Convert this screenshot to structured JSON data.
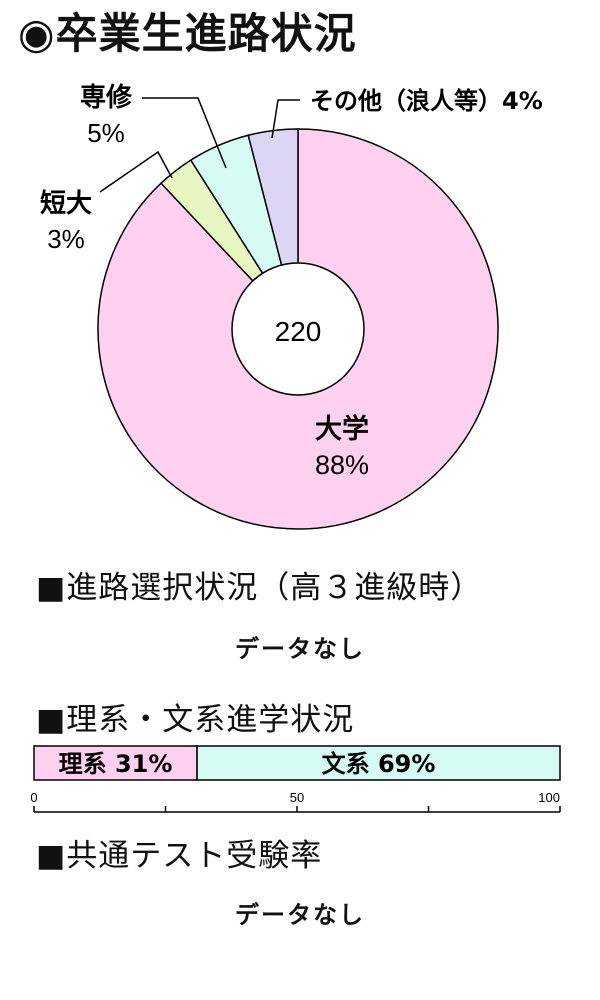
{
  "title": "◉卒業生進路状況",
  "colors": {
    "daigaku": "#ffd0f0",
    "tandai": "#e8f7c2",
    "senshu": "#d6fbf4",
    "sonota": "#dcd6f4",
    "rikei": "#ffd0f0",
    "bunkei": "#d6fbf4"
  },
  "chart_data": [
    {
      "type": "pie",
      "center_label": "220",
      "slices": [
        {
          "name": "大学",
          "value": 88,
          "label_name": "大学",
          "label_pct": "88%"
        },
        {
          "name": "短大",
          "value": 3,
          "label_name": "短大",
          "label_pct": "3%"
        },
        {
          "name": "専修",
          "value": 5,
          "label_name": "専修",
          "label_pct": "5%"
        },
        {
          "name": "その他（浪人等）",
          "value": 4,
          "label_name": "その他（浪人等）4%",
          "label_pct": ""
        }
      ]
    },
    {
      "type": "bar",
      "stacked": true,
      "orientation": "horizontal",
      "segments": [
        {
          "name": "理系",
          "value": 31,
          "label": "理系 31%"
        },
        {
          "name": "文系",
          "value": 69,
          "label": "文系 69%"
        }
      ],
      "xlim": [
        0,
        100
      ],
      "ticks": [
        "0",
        "50",
        "100"
      ]
    }
  ],
  "sections": {
    "shinro": {
      "heading": "■進路選択状況（高３進級時）",
      "nodata": "データなし"
    },
    "riken": {
      "heading": "■理系・文系進学状況"
    },
    "kyotsu": {
      "heading": "■共通テスト受験率",
      "nodata": "データなし"
    }
  }
}
